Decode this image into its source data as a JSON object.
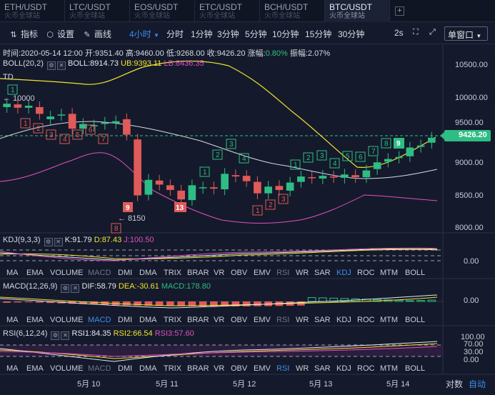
{
  "tabs": [
    {
      "pair": "ETH/USDT",
      "sub": "火币全球站"
    },
    {
      "pair": "LTC/USDT",
      "sub": "火币全球站"
    },
    {
      "pair": "EOS/USDT",
      "sub": "火币全球站"
    },
    {
      "pair": "ETC/USDT",
      "sub": "火币全球站"
    },
    {
      "pair": "BCH/USDT",
      "sub": "火币全球站"
    },
    {
      "pair": "BTC/USDT",
      "sub": "火币全球站",
      "active": true
    }
  ],
  "tab_add": "+",
  "toolbar": {
    "indicator_label": "指标",
    "settings_label": "设置",
    "draw_label": "画线",
    "periods": [
      "4小时",
      "分时",
      "1分钟",
      "3分钟",
      "5分钟",
      "10分钟",
      "15分钟",
      "30分钟"
    ],
    "active_period_index": 0,
    "refresh": "2s",
    "window_mode": "单窗口"
  },
  "info_bar": {
    "time": "时间:2020-05-14 12:00",
    "open": "开:9351.40",
    "high": "高:9460.00",
    "low": "低:9268.00",
    "close": "收:9426.20",
    "change_label": "涨幅:",
    "change_value": "0.80%",
    "amplitude": "振幅:2.07%"
  },
  "boll": {
    "name": "BOLL(20,2)",
    "mid": "BOLL:8914.73",
    "ub": "UB:9393.11",
    "lb": "LB:8436.35"
  },
  "td": {
    "name": "TD"
  },
  "price_axis": [
    "10500.00",
    "10000.00",
    "9500.00",
    "9000.00",
    "8500.00",
    "8000.00"
  ],
  "current_price": "9426.20",
  "annotations": {
    "high": "← 10000",
    "low": "← 8150"
  },
  "kdj": {
    "name": "KDJ(9,3,3)",
    "k": "K:91.79",
    "d": "D:87.43",
    "j": "J:100.50",
    "axis": "0.00"
  },
  "macd": {
    "name": "MACD(12,26,9)",
    "dif": "DIF:58.79",
    "dea": "DEA:-30.61",
    "macd": "MACD:178.80",
    "axis": "0.00"
  },
  "rsi": {
    "name": "RSI(6,12,24)",
    "rsi1": "RSI1:84.35",
    "rsi2": "RSI2:66.54",
    "rsi3": "RSI3:57.60",
    "axis": [
      "100.00",
      "70.00",
      "30.00",
      "0.00"
    ]
  },
  "indicator_buttons": [
    "MA",
    "EMA",
    "VOLUME",
    "MACD",
    "DMI",
    "DMA",
    "TRIX",
    "BRAR",
    "VR",
    "OBV",
    "EMV",
    "RSI",
    "WR",
    "SAR",
    "KDJ",
    "ROC",
    "MTM",
    "BOLL"
  ],
  "dates": [
    "5月 10",
    "5月 11",
    "5月 12",
    "5月 13",
    "5月 14"
  ],
  "bottom": {
    "log": "对数",
    "auto": "自动"
  },
  "colors": {
    "up": "#2ebd85",
    "down": "#e05a5a",
    "accent": "#3e8df0",
    "ma_yellow": "#f0e330",
    "boll_pink": "#e050c0"
  },
  "chart_data": {
    "type": "candlestick",
    "candles": [
      {
        "o": 9880,
        "c": 9930
      },
      {
        "o": 9920,
        "c": 9870
      },
      {
        "o": 9870,
        "c": 9900
      },
      {
        "o": 9880,
        "c": 9780
      },
      {
        "o": 9700,
        "c": 9740
      },
      {
        "o": 9760,
        "c": 9770
      },
      {
        "o": 9780,
        "c": 9560
      },
      {
        "o": 9560,
        "c": 9630
      },
      {
        "o": 9600,
        "c": 9610
      },
      {
        "o": 9630,
        "c": 9650
      },
      {
        "o": 9640,
        "c": 9670
      },
      {
        "o": 9700,
        "c": 9470
      },
      {
        "o": 9400,
        "c": 8570
      },
      {
        "o": 8580,
        "c": 8800
      },
      {
        "o": 8790,
        "c": 8730
      },
      {
        "o": 8720,
        "c": 8650
      },
      {
        "o": 8640,
        "c": 8510
      },
      {
        "o": 8500,
        "c": 8720
      },
      {
        "o": 8680,
        "c": 8690
      },
      {
        "o": 8690,
        "c": 8670
      },
      {
        "o": 8660,
        "c": 8890
      },
      {
        "o": 8870,
        "c": 8850
      },
      {
        "o": 8860,
        "c": 8780
      },
      {
        "o": 8770,
        "c": 8600
      },
      {
        "o": 8600,
        "c": 8700
      },
      {
        "o": 8710,
        "c": 8650
      },
      {
        "o": 8640,
        "c": 8760
      },
      {
        "o": 8770,
        "c": 8850
      },
      {
        "o": 8840,
        "c": 8830
      },
      {
        "o": 8820,
        "c": 8860
      },
      {
        "o": 8850,
        "c": 8840
      },
      {
        "o": 8830,
        "c": 8880
      },
      {
        "o": 8870,
        "c": 8840
      },
      {
        "o": 8840,
        "c": 8940
      },
      {
        "o": 8960,
        "c": 9060
      },
      {
        "o": 9070,
        "c": 9110
      },
      {
        "o": 9130,
        "c": 9140
      },
      {
        "o": 9150,
        "c": 9280
      },
      {
        "o": 9290,
        "c": 9310
      },
      {
        "o": 9351.4,
        "c": 9426.2
      }
    ],
    "ylim": [
      7950,
      10600
    ]
  }
}
